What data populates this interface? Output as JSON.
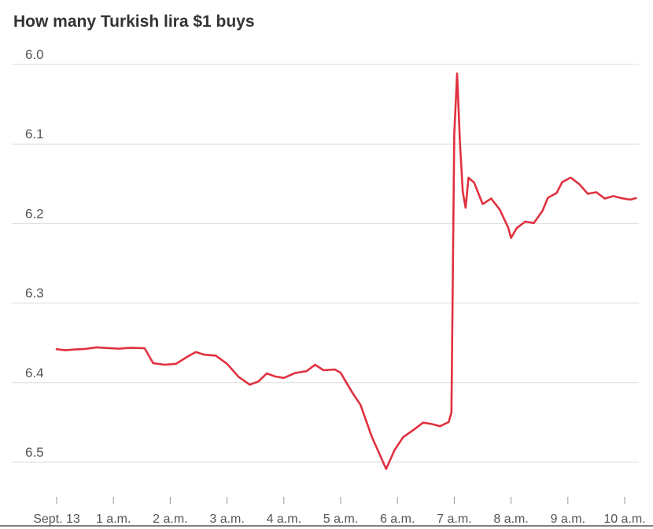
{
  "chart_data": {
    "type": "line",
    "title": "How many Turkish lira $1 buys",
    "subtitle": "",
    "xlabel": "",
    "ylabel": "",
    "y_inverted": true,
    "ylim": [
      6.0,
      6.5
    ],
    "y_ticks": [
      "6.0",
      "6.1",
      "6.2",
      "6.3",
      "6.4",
      "6.5"
    ],
    "x_ticks": [
      "Sept. 13",
      "1 a.m.",
      "2 a.m.",
      "3 a.m.",
      "4 a.m.",
      "5 a.m.",
      "6 a.m.",
      "7 a.m.",
      "8 a.m.",
      "9 a.m.",
      "10 a.m."
    ],
    "xlim_hours": [
      -0.05,
      10.3
    ],
    "grid": true,
    "line_color": "#e0313f",
    "series": [
      {
        "name": "",
        "points": [
          [
            0.0,
            6.358
          ],
          [
            0.15,
            6.359
          ],
          [
            0.3,
            6.358
          ],
          [
            0.5,
            6.357
          ],
          [
            0.7,
            6.355
          ],
          [
            0.9,
            6.356
          ],
          [
            1.1,
            6.357
          ],
          [
            1.3,
            6.356
          ],
          [
            1.55,
            6.357
          ],
          [
            1.7,
            6.376
          ],
          [
            1.9,
            6.378
          ],
          [
            2.1,
            6.377
          ],
          [
            2.3,
            6.368
          ],
          [
            2.45,
            6.362
          ],
          [
            2.6,
            6.365
          ],
          [
            2.8,
            6.366
          ],
          [
            3.0,
            6.376
          ],
          [
            3.2,
            6.392
          ],
          [
            3.4,
            6.402
          ],
          [
            3.55,
            6.398
          ],
          [
            3.7,
            6.388
          ],
          [
            3.85,
            6.392
          ],
          [
            4.0,
            6.394
          ],
          [
            4.2,
            6.388
          ],
          [
            4.4,
            6.386
          ],
          [
            4.55,
            6.378
          ],
          [
            4.7,
            6.385
          ],
          [
            4.9,
            6.384
          ],
          [
            5.0,
            6.388
          ],
          [
            5.2,
            6.412
          ],
          [
            5.35,
            6.428
          ],
          [
            5.55,
            6.468
          ],
          [
            5.8,
            6.508
          ],
          [
            5.95,
            6.484
          ],
          [
            6.1,
            6.468
          ],
          [
            6.3,
            6.458
          ],
          [
            6.45,
            6.45
          ],
          [
            6.6,
            6.452
          ],
          [
            6.75,
            6.455
          ],
          [
            6.9,
            6.45
          ],
          [
            6.95,
            6.438
          ],
          [
            7.0,
            6.088
          ],
          [
            7.05,
            6.012
          ],
          [
            7.1,
            6.098
          ],
          [
            7.15,
            6.16
          ],
          [
            7.2,
            6.18
          ],
          [
            7.25,
            6.142
          ],
          [
            7.35,
            6.148
          ],
          [
            7.5,
            6.175
          ],
          [
            7.65,
            6.168
          ],
          [
            7.8,
            6.182
          ],
          [
            7.95,
            6.205
          ],
          [
            8.0,
            6.218
          ],
          [
            8.1,
            6.206
          ],
          [
            8.25,
            6.198
          ],
          [
            8.4,
            6.2
          ],
          [
            8.55,
            6.185
          ],
          [
            8.65,
            6.168
          ],
          [
            8.8,
            6.162
          ],
          [
            8.9,
            6.148
          ],
          [
            9.05,
            6.142
          ],
          [
            9.2,
            6.15
          ],
          [
            9.35,
            6.162
          ],
          [
            9.5,
            6.16
          ],
          [
            9.65,
            6.168
          ],
          [
            9.8,
            6.165
          ],
          [
            9.95,
            6.168
          ],
          [
            10.1,
            6.17
          ],
          [
            10.2,
            6.168
          ]
        ]
      }
    ]
  }
}
